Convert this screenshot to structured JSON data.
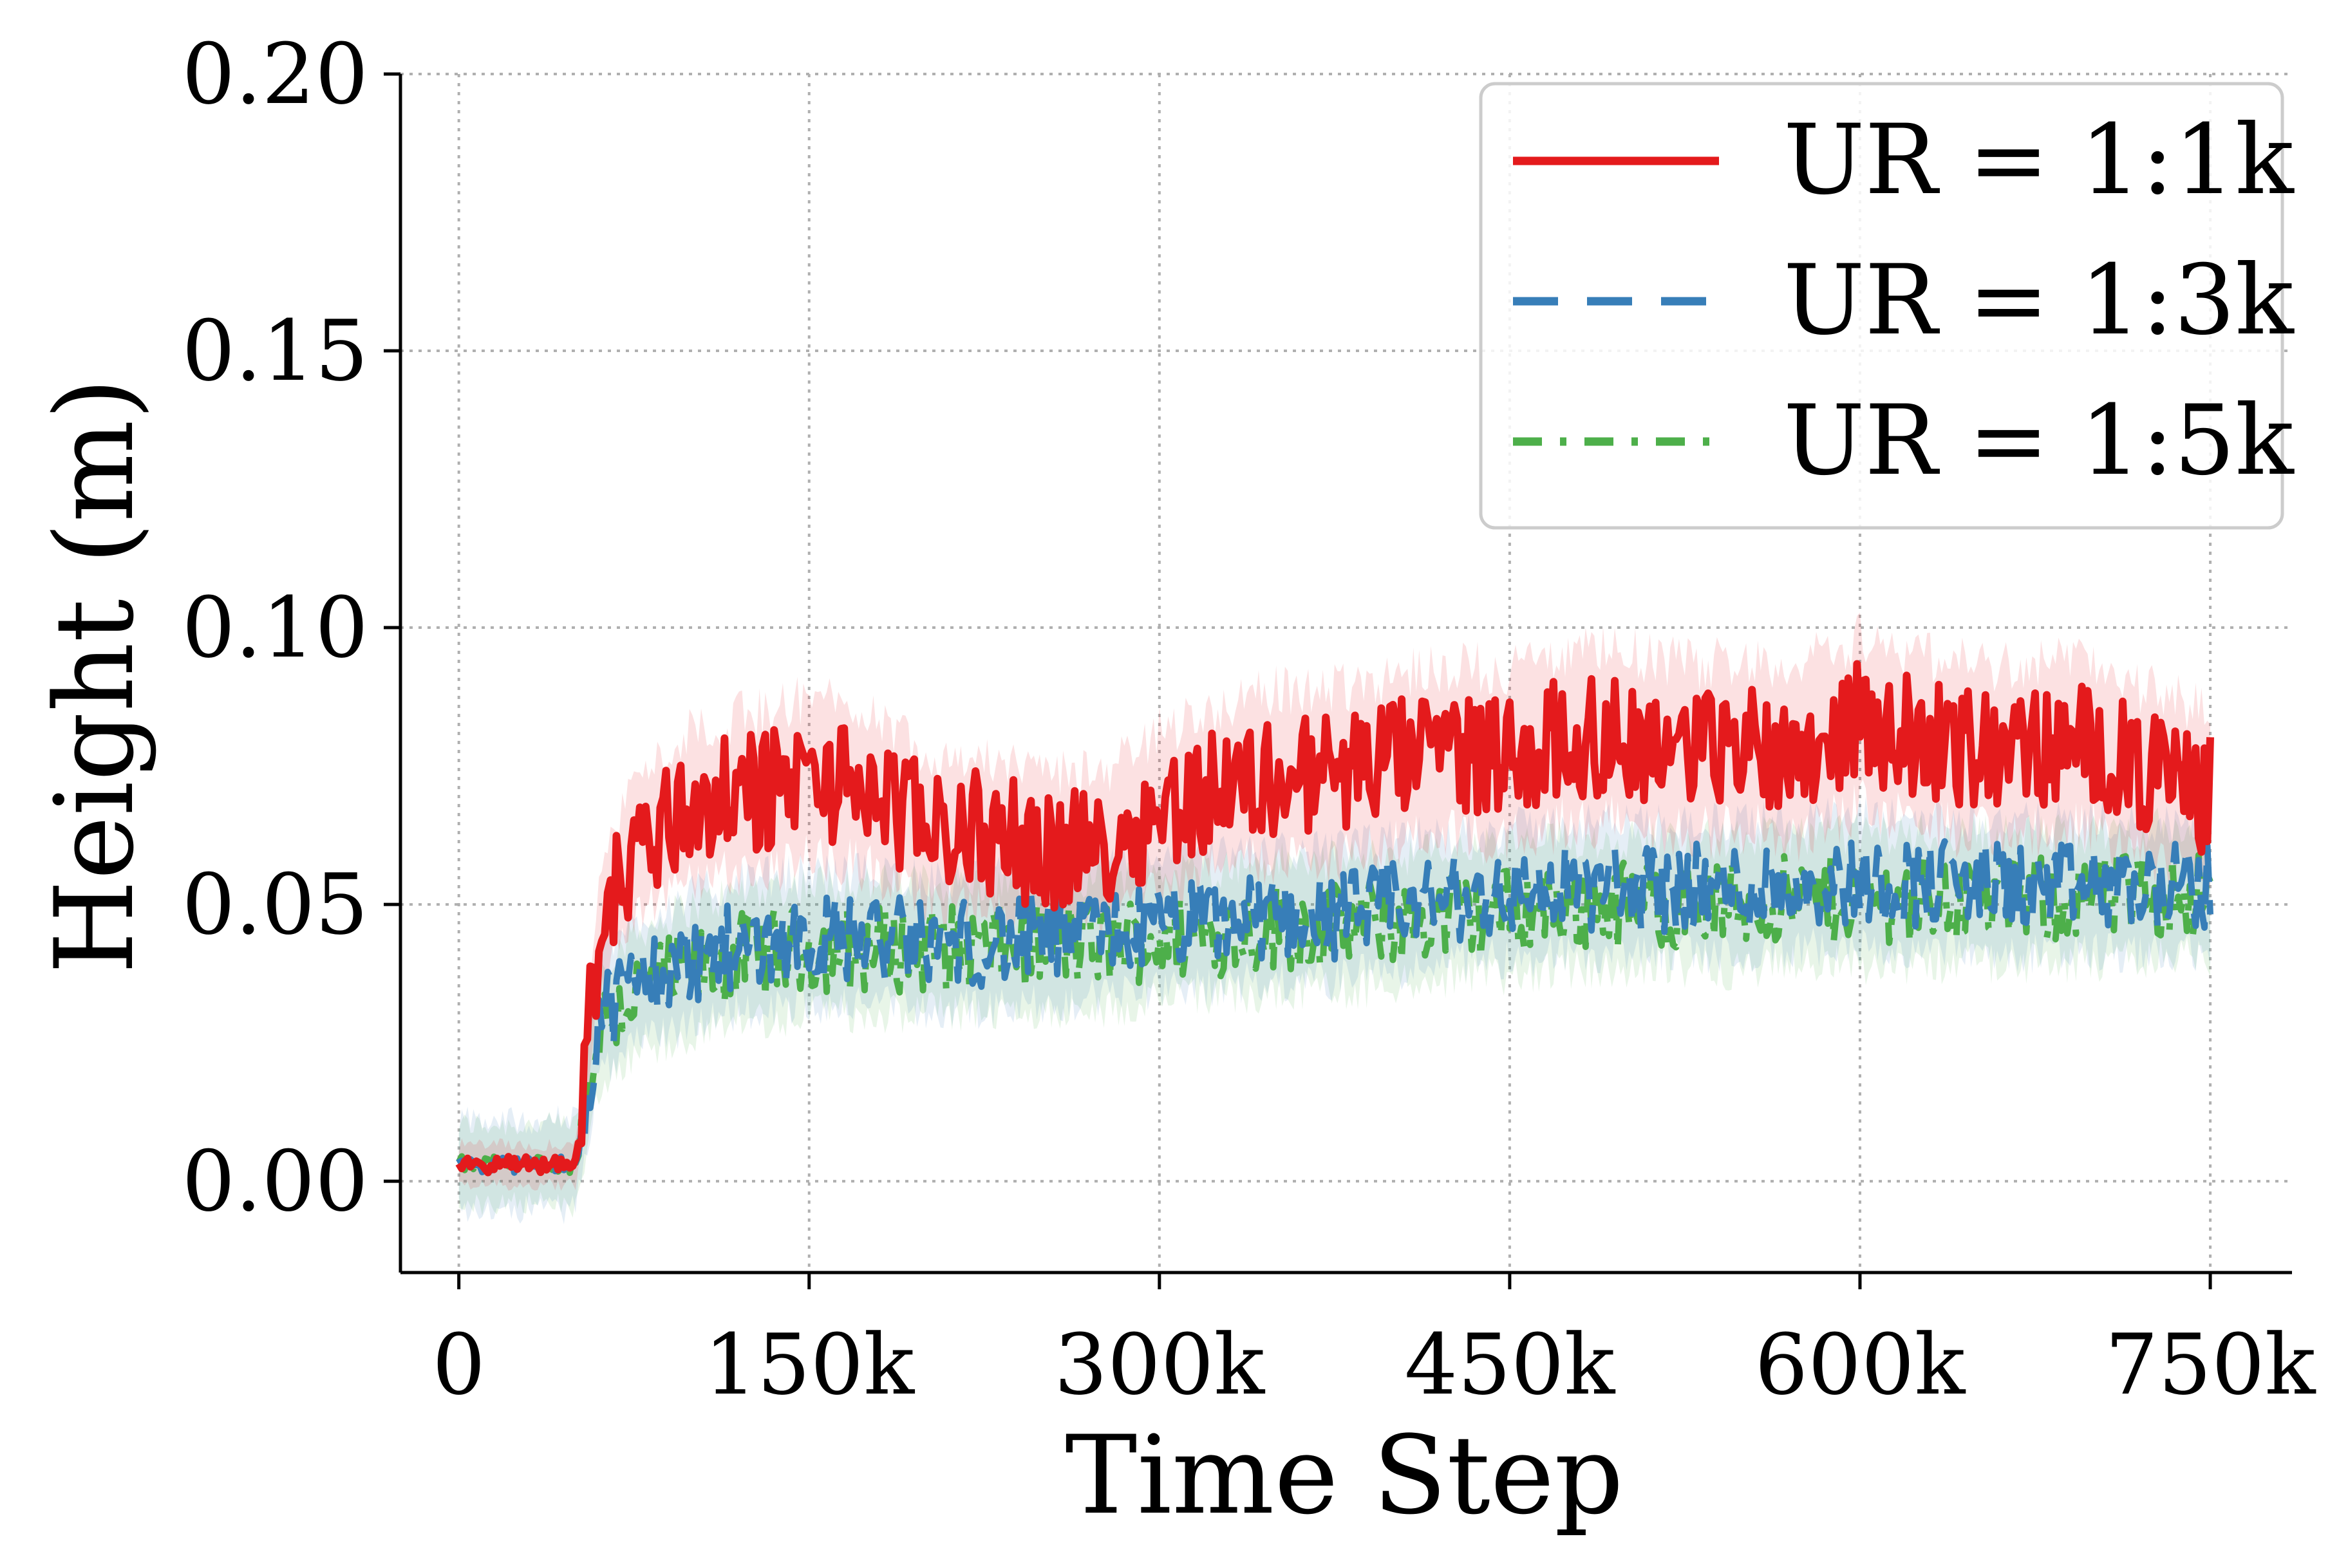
{
  "chart_data": {
    "type": "line",
    "title": "",
    "xlabel": "Time Step",
    "ylabel": "Height (m)",
    "xlim": [
      -25000,
      785000
    ],
    "ylim": [
      -0.0165,
      0.2
    ],
    "grid": true,
    "legend_position": "top-right",
    "x_ticks": [
      0,
      150000,
      300000,
      450000,
      600000,
      750000
    ],
    "x_tick_labels": [
      "0",
      "150k",
      "300k",
      "450k",
      "600k",
      "750k"
    ],
    "y_ticks": [
      0.0,
      0.05,
      0.1,
      0.15,
      0.2
    ],
    "y_tick_labels": [
      "0.00",
      "0.05",
      "0.10",
      "0.15",
      "0.20"
    ],
    "x": [
      0,
      25000,
      50000,
      60000,
      75000,
      100000,
      125000,
      150000,
      175000,
      200000,
      225000,
      250000,
      275000,
      300000,
      325000,
      350000,
      375000,
      400000,
      425000,
      450000,
      475000,
      500000,
      525000,
      550000,
      575000,
      600000,
      625000,
      650000,
      675000,
      700000,
      725000,
      750000
    ],
    "series": [
      {
        "name": "UR = 1:1k",
        "color": "#e41a1c",
        "style": "solid",
        "values": [
          0.003,
          0.003,
          0.003,
          0.045,
          0.06,
          0.068,
          0.07,
          0.073,
          0.071,
          0.064,
          0.063,
          0.06,
          0.06,
          0.067,
          0.071,
          0.073,
          0.074,
          0.076,
          0.078,
          0.077,
          0.08,
          0.08,
          0.078,
          0.079,
          0.078,
          0.083,
          0.08,
          0.078,
          0.078,
          0.079,
          0.073,
          0.07
        ],
        "band": [
          0.004,
          0.004,
          0.004,
          0.012,
          0.014,
          0.015,
          0.016,
          0.016,
          0.016,
          0.015,
          0.015,
          0.015,
          0.015,
          0.016,
          0.016,
          0.017,
          0.017,
          0.017,
          0.017,
          0.017,
          0.017,
          0.017,
          0.017,
          0.017,
          0.017,
          0.017,
          0.017,
          0.017,
          0.017,
          0.017,
          0.017,
          0.016
        ]
      },
      {
        "name": "UR = 1:3k",
        "color": "#377eb8",
        "style": "dashed",
        "values": [
          0.003,
          0.003,
          0.003,
          0.03,
          0.036,
          0.04,
          0.043,
          0.044,
          0.044,
          0.043,
          0.043,
          0.044,
          0.045,
          0.046,
          0.047,
          0.048,
          0.048,
          0.05,
          0.051,
          0.052,
          0.053,
          0.053,
          0.053,
          0.053,
          0.054,
          0.054,
          0.054,
          0.054,
          0.053,
          0.053,
          0.053,
          0.053
        ],
        "band": [
          0.009,
          0.009,
          0.009,
          0.012,
          0.012,
          0.013,
          0.013,
          0.013,
          0.013,
          0.013,
          0.013,
          0.013,
          0.013,
          0.013,
          0.013,
          0.013,
          0.013,
          0.013,
          0.013,
          0.013,
          0.013,
          0.013,
          0.013,
          0.013,
          0.013,
          0.013,
          0.013,
          0.013,
          0.013,
          0.013,
          0.013,
          0.013
        ]
      },
      {
        "name": "UR = 1:5k",
        "color": "#4daf4a",
        "style": "dashdot",
        "values": [
          0.003,
          0.003,
          0.003,
          0.028,
          0.034,
          0.038,
          0.041,
          0.042,
          0.042,
          0.042,
          0.042,
          0.043,
          0.043,
          0.044,
          0.045,
          0.046,
          0.046,
          0.047,
          0.048,
          0.049,
          0.05,
          0.05,
          0.05,
          0.05,
          0.051,
          0.051,
          0.051,
          0.051,
          0.051,
          0.051,
          0.052,
          0.052
        ],
        "band": [
          0.008,
          0.008,
          0.008,
          0.012,
          0.012,
          0.013,
          0.013,
          0.013,
          0.013,
          0.013,
          0.013,
          0.013,
          0.013,
          0.013,
          0.013,
          0.013,
          0.013,
          0.013,
          0.013,
          0.013,
          0.013,
          0.013,
          0.013,
          0.013,
          0.013,
          0.013,
          0.013,
          0.013,
          0.013,
          0.013,
          0.013,
          0.013
        ]
      }
    ]
  }
}
